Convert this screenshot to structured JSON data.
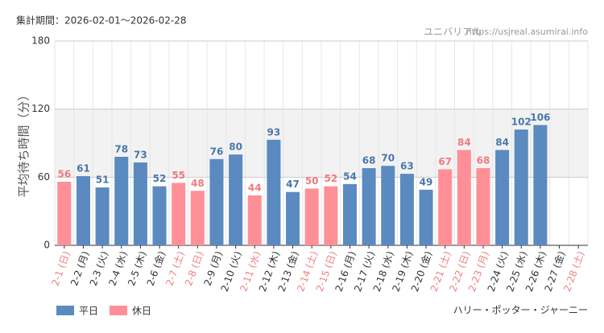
{
  "chart_data": {
    "type": "bar",
    "period": "集計期間：2026-02-01～2026-02-28",
    "source": "ユニバリアル",
    "source_url": "https://usjreal.asumirai.info",
    "attraction": "ハリー・ポッター・ジャーニー",
    "y_label": "平均待ち時間（分）",
    "categories": [
      "2-1 (日)",
      "2-2 (月)",
      "2-3 (火)",
      "2-4 (水)",
      "2-5 (木)",
      "2-6 (金)",
      "2-7 (土)",
      "2-8 (日)",
      "2-9 (月)",
      "2-10 (火)",
      "2-11 (水)",
      "2-12 (木)",
      "2-13 (金)",
      "2-14 (土)",
      "2-15 (日)",
      "2-16 (月)",
      "2-17 (火)",
      "2-18 (水)",
      "2-19 (木)",
      "2-20 (金)",
      "2-21 (土)",
      "2-22 (日)",
      "2-23 (月)",
      "2-24 (火)",
      "2-25 (水)",
      "2-26 (木)",
      "2-27 (金)",
      "2-28 (土)"
    ],
    "category_label_colors": [
      "#f08080",
      "#333333",
      "#333333",
      "#333333",
      "#333333",
      "#333333",
      "#f08080",
      "#f08080",
      "#333333",
      "#333333",
      "#f08080",
      "#333333",
      "#333333",
      "#f08080",
      "#f08080",
      "#333333",
      "#333333",
      "#333333",
      "#333333",
      "#333333",
      "#f08080",
      "#f08080",
      "#f08080",
      "#333333",
      "#333333",
      "#333333",
      "#333333",
      "#f08080"
    ],
    "series": [
      {
        "name": "平日",
        "color": "#5b8ac0",
        "label_color": "#4a77aa",
        "values": [
          null,
          61,
          51,
          78,
          73,
          52,
          null,
          null,
          76,
          80,
          null,
          93,
          47,
          null,
          null,
          54,
          68,
          70,
          63,
          49,
          null,
          null,
          null,
          84,
          102,
          106,
          null,
          null
        ]
      },
      {
        "name": "休日",
        "color": "#ff8f96",
        "label_color": "#f07a80",
        "values": [
          56,
          null,
          null,
          null,
          null,
          null,
          55,
          48,
          null,
          null,
          44,
          null,
          null,
          50,
          52,
          null,
          null,
          null,
          null,
          null,
          67,
          84,
          68,
          null,
          null,
          null,
          null,
          null
        ]
      }
    ],
    "ylim": [
      0,
      180
    ],
    "yticks": [
      0,
      60,
      120,
      180
    ],
    "highlight_band": [
      60,
      120
    ],
    "grid": true
  }
}
